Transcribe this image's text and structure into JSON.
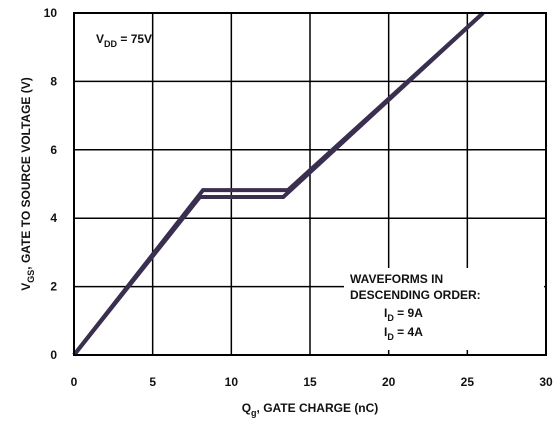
{
  "chart_data": {
    "type": "line",
    "xlabel": {
      "main": "Q",
      "sub": "g",
      "rest": ", GATE CHARGE (nC)"
    },
    "ylabel": {
      "main": "V",
      "sub": "GS",
      "rest": ", GATE TO SOURCE VOLTAGE (V)"
    },
    "xlim": [
      0,
      30
    ],
    "ylim": [
      0,
      10
    ],
    "x_ticks": [
      "0",
      "5",
      "10",
      "15",
      "20",
      "25",
      "30"
    ],
    "y_ticks": [
      "0",
      "2",
      "4",
      "6",
      "8",
      "10"
    ],
    "grid": true,
    "annotations": {
      "vdd": {
        "main": "V",
        "sub": "DD",
        "rest": " = 75V"
      },
      "waveforms_line1": "WAVEFORMS IN",
      "waveforms_line2": "DESCENDING ORDER:",
      "id1": {
        "main": "I",
        "sub": "D",
        "rest": " = 9A"
      },
      "id2": {
        "main": "I",
        "sub": "D",
        "rest": " = 4A"
      }
    },
    "series": [
      {
        "points": [
          [
            0,
            0
          ],
          [
            8.2,
            4.82
          ],
          [
            13.6,
            4.82
          ],
          [
            26,
            10
          ]
        ]
      },
      {
        "points": [
          [
            0,
            0
          ],
          [
            8.0,
            4.62
          ],
          [
            13.3,
            4.62
          ],
          [
            26,
            10
          ]
        ]
      }
    ],
    "colors": {
      "line": "#3a2f4f",
      "grid": "#000000"
    }
  }
}
